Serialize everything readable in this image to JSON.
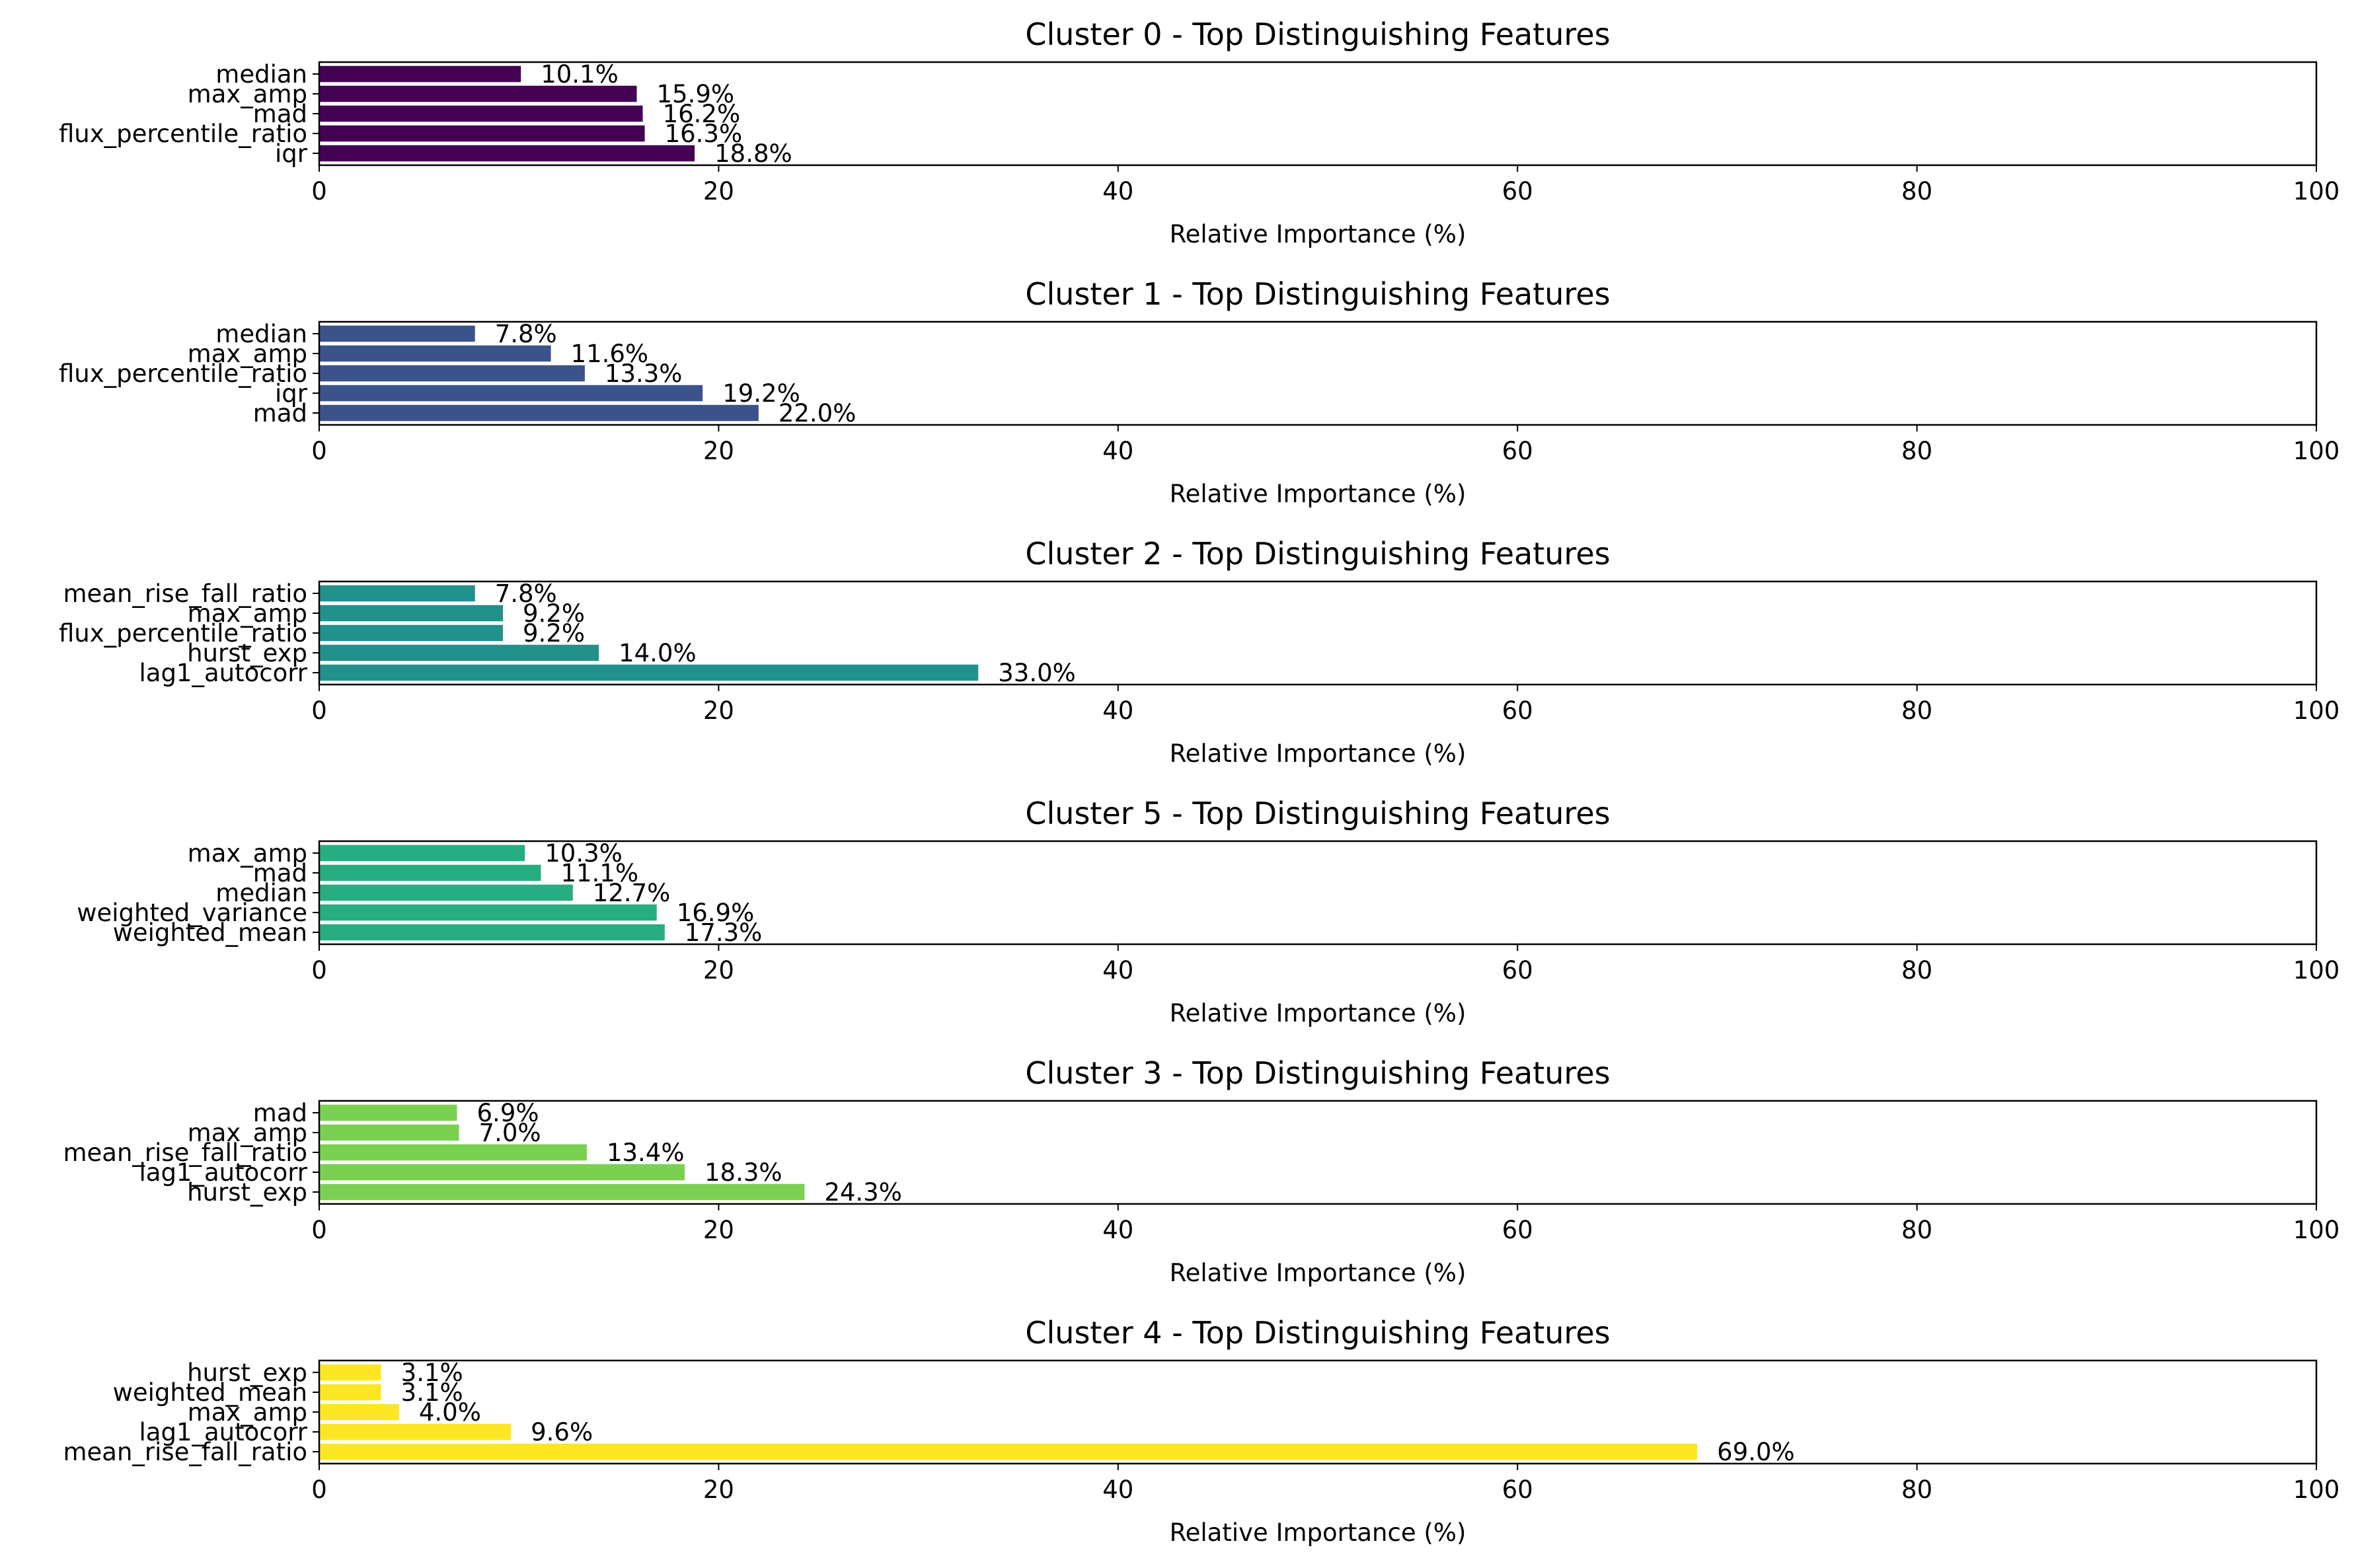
{
  "chart_data": [
    {
      "type": "bar",
      "orientation": "horizontal",
      "title": "Cluster 0 - Top Distinguishing Features",
      "xlabel": "Relative Importance (%)",
      "ylabel": "",
      "xlim": [
        0,
        100
      ],
      "xticks": [
        "0",
        "20",
        "40",
        "60",
        "80",
        "100"
      ],
      "color": "#440154",
      "categories": [
        "median",
        "max_amp",
        "mad",
        "flux_percentile_ratio",
        "iqr"
      ],
      "values": [
        10.1,
        15.9,
        16.2,
        16.3,
        18.8
      ],
      "data_labels": [
        "10.1%",
        "15.9%",
        "16.2%",
        "16.3%",
        "18.8%"
      ],
      "grid": false
    },
    {
      "type": "bar",
      "orientation": "horizontal",
      "title": "Cluster 1 - Top Distinguishing Features",
      "xlabel": "Relative Importance (%)",
      "ylabel": "",
      "xlim": [
        0,
        100
      ],
      "xticks": [
        "0",
        "20",
        "40",
        "60",
        "80",
        "100"
      ],
      "color": "#3b528b",
      "categories": [
        "median",
        "max_amp",
        "flux_percentile_ratio",
        "iqr",
        "mad"
      ],
      "values": [
        7.8,
        11.6,
        13.3,
        19.2,
        22.0
      ],
      "data_labels": [
        "7.8%",
        "11.6%",
        "13.3%",
        "19.2%",
        "22.0%"
      ],
      "grid": false
    },
    {
      "type": "bar",
      "orientation": "horizontal",
      "title": "Cluster 2 - Top Distinguishing Features",
      "xlabel": "Relative Importance (%)",
      "ylabel": "",
      "xlim": [
        0,
        100
      ],
      "xticks": [
        "0",
        "20",
        "40",
        "60",
        "80",
        "100"
      ],
      "color": "#21918c",
      "categories": [
        "mean_rise_fall_ratio",
        "max_amp",
        "flux_percentile_ratio",
        "hurst_exp",
        "lag1_autocorr"
      ],
      "values": [
        7.8,
        9.2,
        9.2,
        14.0,
        33.0
      ],
      "data_labels": [
        "7.8%",
        "9.2%",
        "9.2%",
        "14.0%",
        "33.0%"
      ],
      "grid": false
    },
    {
      "type": "bar",
      "orientation": "horizontal",
      "title": "Cluster 5 - Top Distinguishing Features",
      "xlabel": "Relative Importance (%)",
      "ylabel": "",
      "xlim": [
        0,
        100
      ],
      "xticks": [
        "0",
        "20",
        "40",
        "60",
        "80",
        "100"
      ],
      "color": "#27ad81",
      "categories": [
        "max_amp",
        "mad",
        "median",
        "weighted_variance",
        "weighted_mean"
      ],
      "values": [
        10.3,
        11.1,
        12.7,
        16.9,
        17.3
      ],
      "data_labels": [
        "10.3%",
        "11.1%",
        "12.7%",
        "16.9%",
        "17.3%"
      ],
      "grid": false
    },
    {
      "type": "bar",
      "orientation": "horizontal",
      "title": "Cluster 3 - Top Distinguishing Features",
      "xlabel": "Relative Importance (%)",
      "ylabel": "",
      "xlim": [
        0,
        100
      ],
      "xticks": [
        "0",
        "20",
        "40",
        "60",
        "80",
        "100"
      ],
      "color": "#7ad151",
      "categories": [
        "mad",
        "max_amp",
        "mean_rise_fall_ratio",
        "lag1_autocorr",
        "hurst_exp"
      ],
      "values": [
        6.9,
        7.0,
        13.4,
        18.3,
        24.3
      ],
      "data_labels": [
        "6.9%",
        "7.0%",
        "13.4%",
        "18.3%",
        "24.3%"
      ],
      "grid": false
    },
    {
      "type": "bar",
      "orientation": "horizontal",
      "title": "Cluster 4 - Top Distinguishing Features",
      "xlabel": "Relative Importance (%)",
      "ylabel": "",
      "xlim": [
        0,
        100
      ],
      "xticks": [
        "0",
        "20",
        "40",
        "60",
        "80",
        "100"
      ],
      "color": "#fde725",
      "categories": [
        "hurst_exp",
        "weighted_mean",
        "max_amp",
        "lag1_autocorr",
        "mean_rise_fall_ratio"
      ],
      "values": [
        3.1,
        3.1,
        4.0,
        9.6,
        69.0
      ],
      "data_labels": [
        "3.1%",
        "3.1%",
        "4.0%",
        "9.6%",
        "69.0%"
      ],
      "grid": false
    }
  ]
}
